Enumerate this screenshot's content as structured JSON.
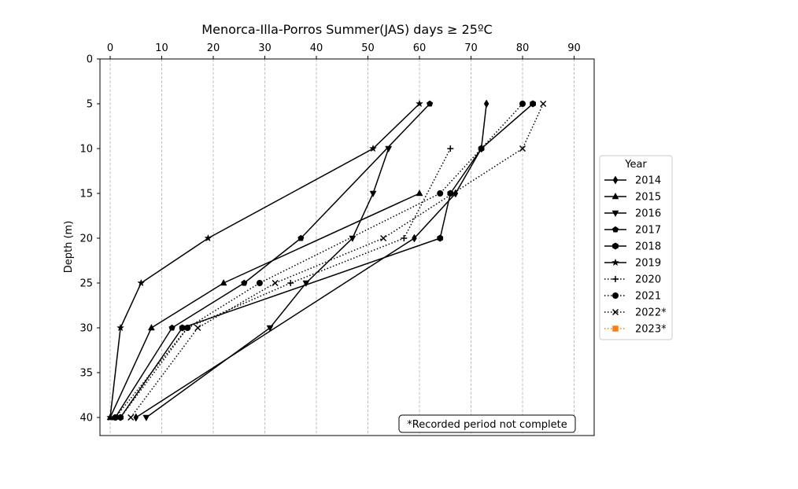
{
  "chart_data": {
    "type": "line",
    "title": "Menorca-Illa-Porros Summer(JAS) days ≥ 25ºC",
    "xlabel": "",
    "ylabel": "Depth (m)",
    "xlim": [
      -2,
      95
    ],
    "ylim": [
      42,
      0
    ],
    "x_axis_position": "top",
    "y_inverted": true,
    "x_ticks": [
      0,
      10,
      20,
      30,
      40,
      50,
      60,
      70,
      80,
      90
    ],
    "y_ticks": [
      0,
      5,
      10,
      15,
      20,
      25,
      30,
      35,
      40
    ],
    "grid": "vertical dashed",
    "legend": {
      "title": "Year",
      "placement": "outside right"
    },
    "annotation": "*Recorded period not complete",
    "series": [
      {
        "name": "2014",
        "marker": "thin_diamond",
        "linestyle": "solid",
        "color": "#000000",
        "points": [
          [
            73,
            5
          ],
          [
            72,
            10
          ],
          [
            67,
            15
          ],
          [
            59,
            20
          ],
          [
            5,
            40
          ]
        ]
      },
      {
        "name": "2015",
        "marker": "triangle_up",
        "linestyle": "solid",
        "color": "#000000",
        "points": [
          [
            60,
            15
          ],
          [
            22,
            25
          ],
          [
            8,
            30
          ],
          [
            0,
            40
          ]
        ]
      },
      {
        "name": "2016",
        "marker": "triangle_down",
        "linestyle": "solid",
        "color": "#000000",
        "points": [
          [
            54,
            10
          ],
          [
            51,
            15
          ],
          [
            47,
            20
          ],
          [
            38,
            25
          ],
          [
            31,
            30
          ],
          [
            7,
            40
          ]
        ]
      },
      {
        "name": "2017",
        "marker": "pentagon",
        "linestyle": "solid",
        "color": "#000000",
        "points": [
          [
            62,
            5
          ],
          [
            37,
            20
          ],
          [
            26,
            25
          ],
          [
            12,
            30
          ],
          [
            1,
            40
          ]
        ]
      },
      {
        "name": "2018",
        "marker": "hexagon",
        "linestyle": "solid",
        "color": "#000000",
        "points": [
          [
            82,
            5
          ],
          [
            72,
            10
          ],
          [
            66,
            15
          ],
          [
            64,
            20
          ],
          [
            14,
            30
          ],
          [
            2,
            40
          ]
        ]
      },
      {
        "name": "2019",
        "marker": "star",
        "linestyle": "solid",
        "color": "#000000",
        "points": [
          [
            60,
            5
          ],
          [
            51,
            10
          ],
          [
            19,
            20
          ],
          [
            6,
            25
          ],
          [
            2,
            30
          ],
          [
            0,
            40
          ]
        ]
      },
      {
        "name": "2020",
        "marker": "plus",
        "linestyle": "dotted",
        "color": "#000000",
        "points": [
          [
            66,
            10
          ],
          [
            57,
            20
          ],
          [
            35,
            25
          ],
          [
            15,
            30
          ],
          [
            2,
            40
          ]
        ]
      },
      {
        "name": "2021",
        "marker": "circle",
        "linestyle": "dotted",
        "color": "#000000",
        "points": [
          [
            80,
            5
          ],
          [
            64,
            15
          ],
          [
            29,
            25
          ],
          [
            15,
            30
          ],
          [
            1,
            40
          ]
        ]
      },
      {
        "name": "2022*",
        "marker": "x",
        "linestyle": "dotted",
        "color": "#000000",
        "points": [
          [
            84,
            5
          ],
          [
            80,
            10
          ],
          [
            53,
            20
          ],
          [
            32,
            25
          ],
          [
            17,
            30
          ],
          [
            4,
            40
          ]
        ]
      },
      {
        "name": "2023*",
        "marker": "square",
        "linestyle": "dotted",
        "color": "#ff7f0e",
        "points": []
      }
    ]
  }
}
